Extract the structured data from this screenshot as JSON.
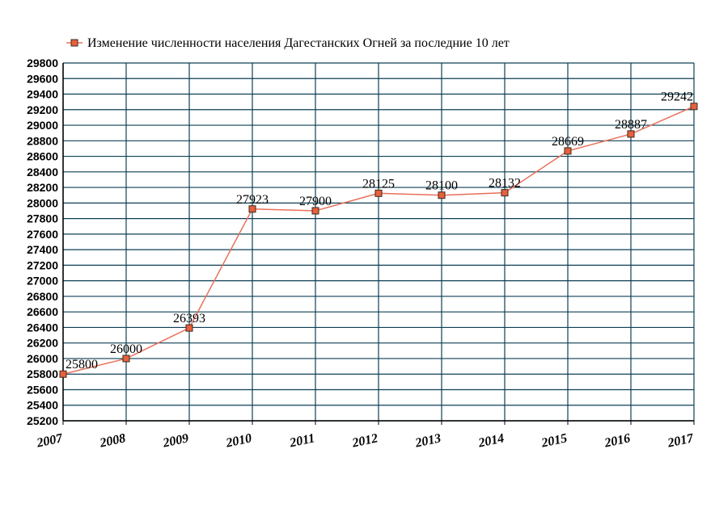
{
  "chart_data": {
    "type": "line",
    "title": "",
    "xlabel": "",
    "ylabel": "",
    "categories": [
      "2007",
      "2008",
      "2009",
      "2010",
      "2011",
      "2012",
      "2013",
      "2014",
      "2015",
      "2016",
      "2017"
    ],
    "series": [
      {
        "name": "Изменение численности населения Дагестанских Огней за последние 10 лет",
        "values": [
          25800,
          26000,
          26393,
          27923,
          27900,
          28125,
          28100,
          28132,
          28669,
          28887,
          29242
        ],
        "data_labels": [
          "25800",
          "26000",
          "26393",
          "27923",
          "27900",
          "28125",
          "28100",
          "28132",
          "28669",
          "28887",
          "29242"
        ]
      }
    ],
    "ylim": [
      25200,
      29800
    ],
    "y_ticks": [
      "25200",
      "25400",
      "25600",
      "25800",
      "26000",
      "26200",
      "26400",
      "26600",
      "26800",
      "27000",
      "27200",
      "27400",
      "27600",
      "27800",
      "28000",
      "28200",
      "28400",
      "28600",
      "28800",
      "29000",
      "29200",
      "29400",
      "29600",
      "29800"
    ],
    "grid": true,
    "legend_position": "top",
    "colors": {
      "line": "#e8705a",
      "marker_fill": "#e8603c",
      "marker_stroke": "#3a2a20",
      "grid": "#0d3f55",
      "background": "#ffffff"
    }
  }
}
